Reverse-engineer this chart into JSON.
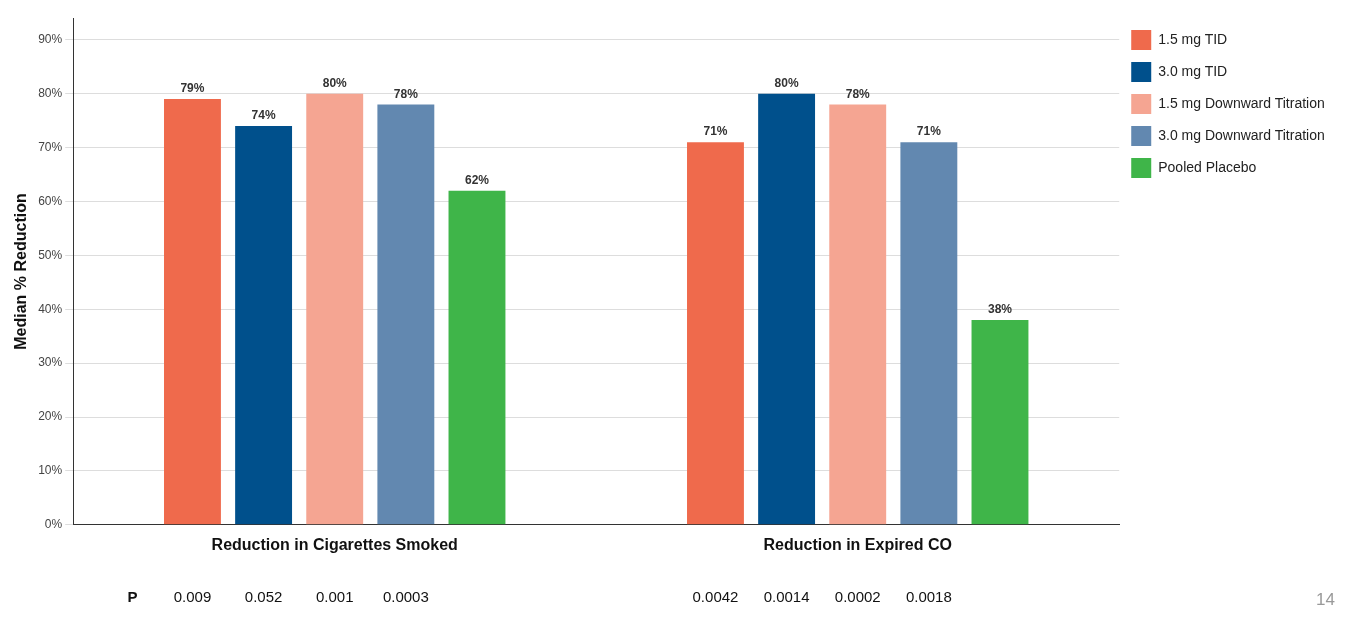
{
  "chart_data": {
    "type": "bar",
    "ylabel": "Median % Reduction",
    "categories": [
      "Reduction in Cigarettes Smoked",
      "Reduction in Expired CO"
    ],
    "series": [
      {
        "name": "1.5 mg TID",
        "color": "#ef6a4c",
        "values": [
          79,
          71
        ],
        "value_labels": [
          "79%",
          "71%"
        ]
      },
      {
        "name": "3.0 mg TID",
        "color": "#00508c",
        "values": [
          74,
          80
        ],
        "value_labels": [
          "74%",
          "80%"
        ]
      },
      {
        "name": "1.5 mg Downward Titration",
        "color": "#f5a592",
        "values": [
          80,
          78
        ],
        "value_labels": [
          "80%",
          "78%"
        ]
      },
      {
        "name": "3.0 mg Downward Titration",
        "color": "#6288b0",
        "values": [
          78,
          71
        ],
        "value_labels": [
          "78%",
          "71%"
        ]
      },
      {
        "name": "Pooled Placebo",
        "color": "#3fb549",
        "values": [
          62,
          38
        ],
        "value_labels": [
          "62%",
          "38%"
        ]
      }
    ],
    "ylim": [
      0,
      94
    ],
    "yticks": [
      {
        "value": 0,
        "label": "0%"
      },
      {
        "value": 10,
        "label": "10%"
      },
      {
        "value": 20,
        "label": "20%"
      },
      {
        "value": 30,
        "label": "30%"
      },
      {
        "value": 40,
        "label": "40%"
      },
      {
        "value": 50,
        "label": "50%"
      },
      {
        "value": 60,
        "label": "60%"
      },
      {
        "value": 70,
        "label": "70%"
      },
      {
        "value": 80,
        "label": "80%"
      },
      {
        "value": 90,
        "label": "90%"
      }
    ],
    "grid": "y",
    "legend": "right",
    "annotations": [
      "P",
      "0.009",
      "0.052",
      "0.001",
      "0.0003",
      "0.0042",
      "0.0014",
      "0.0002",
      "0.0018",
      "14"
    ]
  }
}
